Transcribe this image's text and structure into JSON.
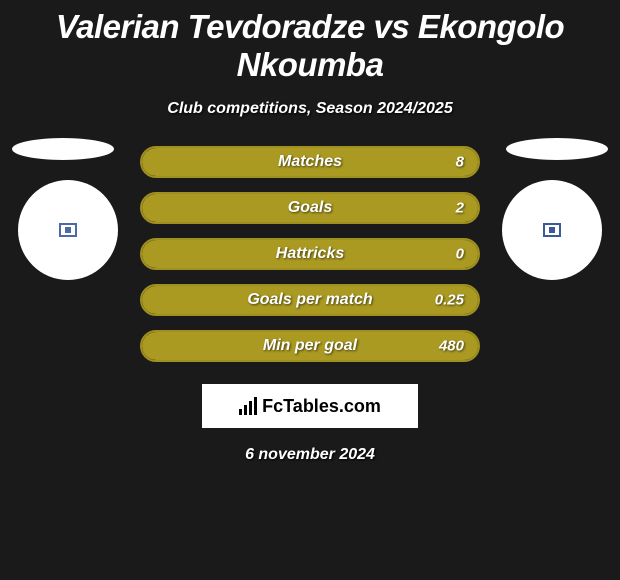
{
  "title": "Valerian Tevdoradze vs Ekongolo Nkoumba",
  "subtitle": "Club competitions, Season 2024/2025",
  "date": "6 november 2024",
  "logo_text": "FcTables.com",
  "background_color": "#1a1a1a",
  "bar_border_color": "#9e8f1f",
  "bar_fill_color": "#aa9a22",
  "text_color": "#ffffff",
  "avatar_left_color": "#4a6aa8",
  "avatar_right_color": "#3a5a98",
  "stats": [
    {
      "label": "Matches",
      "value": "8",
      "fill_pct": 100
    },
    {
      "label": "Goals",
      "value": "2",
      "fill_pct": 100
    },
    {
      "label": "Hattricks",
      "value": "0",
      "fill_pct": 100
    },
    {
      "label": "Goals per match",
      "value": "0.25",
      "fill_pct": 100
    },
    {
      "label": "Min per goal",
      "value": "480",
      "fill_pct": 100
    }
  ]
}
